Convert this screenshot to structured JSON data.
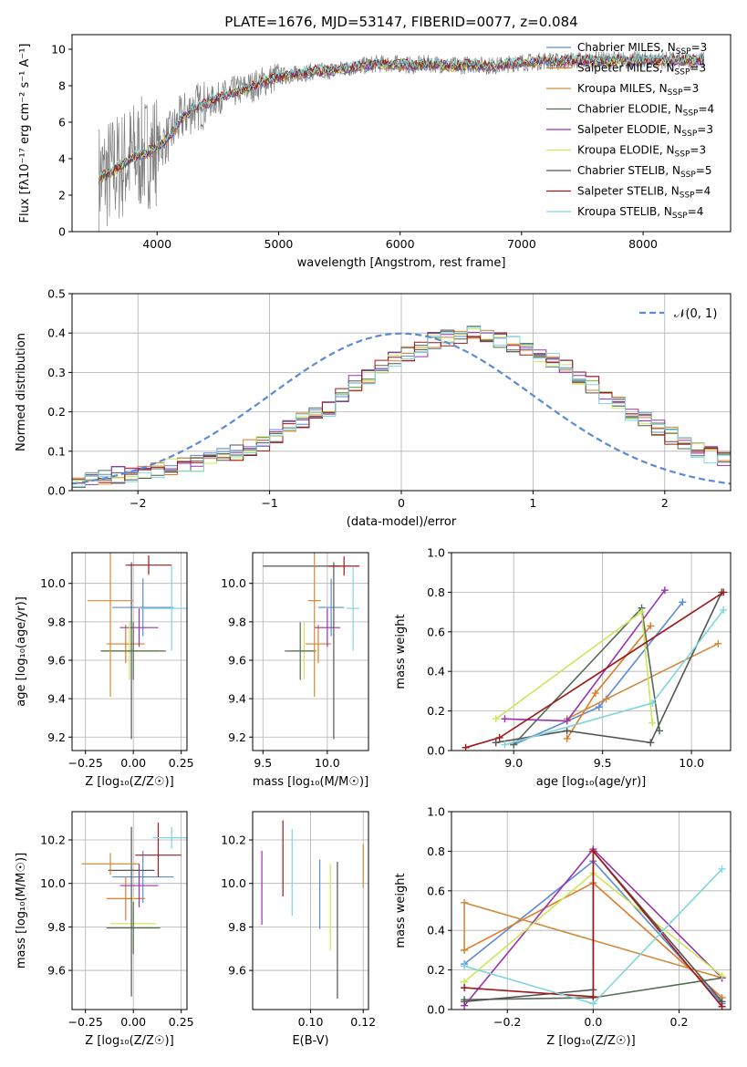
{
  "figure": {
    "title": "PLATE=1676, MJD=53147, FIBERID=0077, z=0.084"
  },
  "series_styles": [
    {
      "name": "Chabrier MILES, N_SSP=3",
      "color": "#5b8bd6"
    },
    {
      "name": "Salpeter MILES, N_SSP=3",
      "color": "#e07b2a"
    },
    {
      "name": "Kroupa MILES, N_SSP=3",
      "color": "#d08a3c"
    },
    {
      "name": "Chabrier ELODIE, N_SSP=4",
      "color": "#556b55"
    },
    {
      "name": "Salpeter ELODIE, N_SSP=3",
      "color": "#9b30b0"
    },
    {
      "name": "Kroupa ELODIE, N_SSP=3",
      "color": "#cde65a"
    },
    {
      "name": "Chabrier STELIB, N_SSP=5",
      "color": "#555555"
    },
    {
      "name": "Salpeter STELIB, N_SSP=4",
      "color": "#a01818"
    },
    {
      "name": "Kroupa STELIB, N_SSP=4",
      "color": "#7fd6dc"
    }
  ],
  "chart_data": [
    {
      "id": "spectrum",
      "type": "line",
      "title": "PLATE=1676, MJD=53147, FIBERID=0077, z=0.084",
      "xlabel": "wavelength [Angstrom, rest frame]",
      "ylabel": "Flux [fλ10⁻¹⁷ erg cm⁻² s⁻¹ A⁻¹]",
      "xlim": [
        3300,
        8720
      ],
      "ylim": [
        0,
        10.8
      ],
      "xticks": [
        4000,
        5000,
        6000,
        7000,
        8000
      ],
      "yticks": [
        0,
        2,
        4,
        6,
        8,
        10
      ],
      "grid": false,
      "legend_position": "upper right",
      "legend": [
        "Chabrier MILES, N_SSP=3",
        "Salpeter MILES, N_SSP=3",
        "Kroupa MILES, N_SSP=3",
        "Chabrier ELODIE, N_SSP=4",
        "Salpeter ELODIE, N_SSP=3",
        "Kroupa ELODIE, N_SSP=3",
        "Chabrier STELIB, N_SSP=5",
        "Salpeter STELIB, N_SSP=4",
        "Kroupa STELIB, N_SSP=4"
      ],
      "data_color": "#808080",
      "data_curve": {
        "x": [
          3520,
          3600,
          3700,
          3800,
          3900,
          4000,
          4100,
          4200,
          4300,
          4400,
          4500,
          4600,
          4700,
          4800,
          4900,
          5000,
          5100,
          5200,
          5300,
          5400,
          5500,
          5600,
          5700,
          5800,
          5900,
          6000,
          6100,
          6200,
          6300,
          6400,
          6500,
          6600,
          6700,
          6800,
          6900,
          7000,
          7100,
          7200,
          7300,
          7400
        ],
        "y": [
          2.9,
          3.2,
          3.6,
          4.1,
          4.3,
          4.6,
          5.2,
          6.2,
          6.8,
          7.0,
          7.3,
          7.6,
          7.8,
          8.0,
          8.3,
          8.5,
          8.6,
          8.7,
          8.8,
          8.8,
          8.9,
          9.0,
          9.1,
          9.2,
          9.2,
          9.2,
          9.1,
          9.2,
          9.2,
          9.1,
          9.1,
          9.2,
          9.1,
          9.1,
          9.2,
          9.3,
          9.3,
          9.4,
          9.3,
          9.4
        ]
      },
      "model_curve_x_extent": [
        3520,
        8500
      ]
    },
    {
      "id": "residual-hist",
      "type": "histogram",
      "xlabel": "(data-model)/error",
      "ylabel": "Normed distribution",
      "xlim": [
        -2.5,
        2.5
      ],
      "ylim": [
        0,
        0.5
      ],
      "xticks": [
        -2,
        -1,
        0,
        1,
        2
      ],
      "yticks": [
        0.0,
        0.1,
        0.2,
        0.3,
        0.4,
        0.5
      ],
      "grid": true,
      "legend": [
        "𝒩(0, 1)"
      ],
      "legend_position": "upper right",
      "reference_curve": {
        "name": "𝒩(0, 1)",
        "mean": 0,
        "sigma": 1,
        "color": "#5b8bd6"
      },
      "bin_width": 0.1,
      "bin_start": -2.5,
      "histogram": [
        0.025,
        0.03,
        0.035,
        0.04,
        0.045,
        0.05,
        0.055,
        0.06,
        0.065,
        0.07,
        0.08,
        0.09,
        0.095,
        0.11,
        0.12,
        0.14,
        0.16,
        0.18,
        0.195,
        0.21,
        0.24,
        0.27,
        0.29,
        0.31,
        0.33,
        0.35,
        0.36,
        0.38,
        0.39,
        0.39,
        0.395,
        0.39,
        0.38,
        0.37,
        0.36,
        0.35,
        0.33,
        0.31,
        0.29,
        0.27,
        0.24,
        0.22,
        0.2,
        0.18,
        0.16,
        0.14,
        0.12,
        0.1,
        0.09,
        0.08
      ]
    },
    {
      "id": "age-vs-Z",
      "type": "errorbar",
      "xlabel": "Z [log₁₀(Z/Z☉)]",
      "ylabel": "age  [log₁₀(age/yr)]",
      "xlim": [
        -0.32,
        0.28
      ],
      "ylim": [
        9.13,
        10.16
      ],
      "xticks": [
        -0.25,
        0.0,
        0.25
      ],
      "xtick_labels": [
        "−0.25",
        "0.00",
        "0.25"
      ],
      "yticks": [
        9.2,
        9.4,
        9.6,
        9.8,
        10.0
      ],
      "grid": true,
      "points": [
        {
          "series": 0,
          "x": 0.05,
          "y": 9.875,
          "xerr": [
            0.16,
            0.16
          ],
          "yerr": [
            0.15,
            0.15
          ]
        },
        {
          "series": 1,
          "x": -0.04,
          "y": 9.685,
          "xerr": [
            0.1,
            0.1
          ],
          "yerr": [
            0.1,
            0.1
          ]
        },
        {
          "series": 4,
          "x": 0.03,
          "y": 9.77,
          "xerr": [
            0.1,
            0.1
          ],
          "yerr": [
            0.1,
            0.1
          ]
        },
        {
          "series": 5,
          "x": -0.02,
          "y": 9.65,
          "xerr": [
            0.15,
            0.15
          ],
          "yerr": [
            0.15,
            0.15
          ]
        },
        {
          "series": 3,
          "x": 0.0,
          "y": 9.648,
          "xerr": [
            0.17,
            0.17
          ],
          "yerr": [
            0.15,
            0.15
          ]
        },
        {
          "series": 6,
          "x": -0.01,
          "y": 10.09,
          "xerr": [
            0.0,
            0.0
          ],
          "yerr": [
            0.9,
            0.02
          ]
        },
        {
          "series": 7,
          "x": 0.08,
          "y": 10.095,
          "xerr": [
            0.12,
            0.12
          ],
          "yerr": [
            0.05,
            0.05
          ]
        },
        {
          "series": 8,
          "x": 0.2,
          "y": 9.87,
          "xerr": [
            0.16,
            0.16
          ],
          "yerr": [
            0.22,
            0.22
          ]
        },
        {
          "series": 2,
          "x": -0.12,
          "y": 9.91,
          "xerr": [
            0.12,
            0.12
          ],
          "yerr": [
            0.5,
            0.5
          ]
        }
      ]
    },
    {
      "id": "age-vs-mass",
      "type": "errorbar",
      "xlabel": "mass [log₁₀(M/M☉)]",
      "ylabel": "",
      "xlim": [
        9.42,
        10.32
      ],
      "ylim": [
        9.13,
        10.16
      ],
      "xticks": [
        9.5,
        10.0
      ],
      "xtick_labels": [
        "9.5",
        "10.0"
      ],
      "yticks": [
        9.2,
        9.4,
        9.6,
        9.8,
        10.0
      ],
      "grid": true,
      "points": [
        {
          "series": 0,
          "x": 10.03,
          "y": 9.875,
          "xerr": [
            0.1,
            0.1
          ],
          "yerr": [
            0.15,
            0.15
          ]
        },
        {
          "series": 1,
          "x": 9.93,
          "y": 9.685,
          "xerr": [
            0.1,
            0.1
          ],
          "yerr": [
            0.1,
            0.1
          ]
        },
        {
          "series": 4,
          "x": 10.0,
          "y": 9.77,
          "xerr": [
            0.1,
            0.1
          ],
          "yerr": [
            0.1,
            0.1
          ]
        },
        {
          "series": 5,
          "x": 9.82,
          "y": 9.65,
          "xerr": [
            0.1,
            0.1
          ],
          "yerr": [
            0.15,
            0.15
          ]
        },
        {
          "series": 3,
          "x": 9.79,
          "y": 9.648,
          "xerr": [
            0.12,
            0.12
          ],
          "yerr": [
            0.15,
            0.15
          ]
        },
        {
          "series": 6,
          "x": 10.05,
          "y": 10.09,
          "xerr": [
            0.55,
            0.05
          ],
          "yerr": [
            0.9,
            0.02
          ]
        },
        {
          "series": 7,
          "x": 10.13,
          "y": 10.09,
          "xerr": [
            0.12,
            0.12
          ],
          "yerr": [
            0.05,
            0.05
          ]
        },
        {
          "series": 8,
          "x": 10.2,
          "y": 9.87,
          "xerr": [
            0.05,
            0.05
          ],
          "yerr": [
            0.22,
            0.22
          ]
        },
        {
          "series": 2,
          "x": 9.9,
          "y": 9.91,
          "xerr": [
            0.05,
            0.05
          ],
          "yerr": [
            0.5,
            0.5
          ]
        }
      ]
    },
    {
      "id": "weight-vs-age",
      "type": "line",
      "xlabel": "age  [log₁₀(age/yr)]",
      "ylabel": "mass weight",
      "xlim": [
        8.65,
        10.22
      ],
      "ylim": [
        0,
        1.0
      ],
      "xticks": [
        9.0,
        9.5,
        10.0
      ],
      "xtick_labels": [
        "9.0",
        "9.5",
        "10.0"
      ],
      "yticks": [
        0.0,
        0.2,
        0.4,
        0.6,
        0.8,
        1.0
      ],
      "grid": true,
      "series": [
        {
          "series": 0,
          "x": [
            9.0,
            9.48,
            9.95
          ],
          "y": [
            0.03,
            0.22,
            0.75
          ]
        },
        {
          "series": 1,
          "x": [
            9.3,
            9.46,
            9.77
          ],
          "y": [
            0.06,
            0.29,
            0.63
          ]
        },
        {
          "series": 2,
          "x": [
            9.3,
            9.52,
            10.15
          ],
          "y": [
            0.16,
            0.26,
            0.54
          ]
        },
        {
          "series": 3,
          "x": [
            9.0,
            9.72,
            9.82
          ],
          "y": [
            0.03,
            0.72,
            0.1
          ]
        },
        {
          "series": 4,
          "x": [
            8.95,
            9.3,
            9.85
          ],
          "y": [
            0.16,
            0.15,
            0.81
          ]
        },
        {
          "series": 5,
          "x": [
            8.9,
            9.72,
            9.78
          ],
          "y": [
            0.16,
            0.7,
            0.14
          ]
        },
        {
          "series": 6,
          "x": [
            8.9,
            9.3,
            9.77,
            10.17
          ],
          "y": [
            0.04,
            0.1,
            0.04,
            0.8
          ]
        },
        {
          "series": 7,
          "x": [
            8.73,
            8.92,
            10.18
          ],
          "y": [
            0.015,
            0.065,
            0.8
          ]
        },
        {
          "series": 8,
          "x": [
            8.95,
            9.78,
            10.18
          ],
          "y": [
            0.03,
            0.24,
            0.71
          ]
        }
      ]
    },
    {
      "id": "mass-vs-Z",
      "type": "errorbar",
      "xlabel": "Z [log₁₀(Z/Z☉)]",
      "ylabel": "mass [log₁₀(M/M☉)]",
      "xlim": [
        -0.32,
        0.28
      ],
      "ylim": [
        9.42,
        10.33
      ],
      "xticks": [
        -0.25,
        0.0,
        0.25
      ],
      "xtick_labels": [
        "−0.25",
        "0.00",
        "0.25"
      ],
      "yticks": [
        9.6,
        9.8,
        10.0,
        10.2
      ],
      "grid": true,
      "points": [
        {
          "series": 0,
          "x": 0.05,
          "y": 10.03,
          "xerr": [
            0.16,
            0.16
          ],
          "yerr": [
            0.12,
            0.12
          ]
        },
        {
          "series": 1,
          "x": -0.04,
          "y": 9.93,
          "xerr": [
            0.1,
            0.1
          ],
          "yerr": [
            0.1,
            0.1
          ]
        },
        {
          "series": 4,
          "x": 0.03,
          "y": 9.99,
          "xerr": [
            0.1,
            0.1
          ],
          "yerr": [
            0.1,
            0.1
          ]
        },
        {
          "series": 5,
          "x": 0.0,
          "y": 9.815,
          "xerr": [
            0.12,
            0.12
          ],
          "yerr": [
            0.12,
            0.12
          ]
        },
        {
          "series": 3,
          "x": 0.0,
          "y": 9.795,
          "xerr": [
            0.14,
            0.14
          ],
          "yerr": [
            0.12,
            0.12
          ]
        },
        {
          "series": 6,
          "x": -0.01,
          "y": 10.06,
          "xerr": [
            0.12,
            0.12
          ],
          "yerr": [
            0.58,
            0.2
          ]
        },
        {
          "series": 7,
          "x": 0.13,
          "y": 10.13,
          "xerr": [
            0.12,
            0.12
          ],
          "yerr": [
            0.1,
            0.15
          ]
        },
        {
          "series": 8,
          "x": 0.2,
          "y": 10.21,
          "xerr": [
            0.1,
            0.1
          ],
          "yerr": [
            0.05,
            0.05
          ]
        },
        {
          "series": 2,
          "x": -0.12,
          "y": 10.09,
          "xerr": [
            0.15,
            0.15
          ],
          "yerr": [
            0.05,
            0.05
          ]
        }
      ]
    },
    {
      "id": "mass-vs-ebv",
      "type": "errorbar",
      "xlabel": "E(B-V)",
      "ylabel": "",
      "xlim": [
        0.078,
        0.122
      ],
      "ylim": [
        9.42,
        10.33
      ],
      "xticks": [
        0.1,
        0.12
      ],
      "xtick_labels": [
        "0.10",
        "0.12"
      ],
      "yticks": [
        9.6,
        9.8,
        10.0,
        10.2
      ],
      "grid": true,
      "points": [
        {
          "series": 4,
          "x": 0.0815,
          "y": 9.98,
          "xerr": [
            0,
            0
          ],
          "yerr": [
            0.17,
            0.17
          ]
        },
        {
          "series": 7,
          "x": 0.0895,
          "y": 10.11,
          "xerr": [
            0,
            0
          ],
          "yerr": [
            0.17,
            0.18
          ]
        },
        {
          "series": 8,
          "x": 0.093,
          "y": 10.05,
          "xerr": [
            0,
            0
          ],
          "yerr": [
            0.2,
            0.2
          ]
        },
        {
          "series": 0,
          "x": 0.1035,
          "y": 9.95,
          "xerr": [
            0,
            0
          ],
          "yerr": [
            0.16,
            0.16
          ]
        },
        {
          "series": 5,
          "x": 0.1075,
          "y": 9.89,
          "xerr": [
            0,
            0
          ],
          "yerr": [
            0.2,
            0.2
          ]
        },
        {
          "series": 6,
          "x": 0.1102,
          "y": 9.79,
          "xerr": [
            0,
            0
          ],
          "yerr": [
            0.32,
            0.31
          ]
        },
        {
          "series": 2,
          "x": 0.12,
          "y": 10.08,
          "xerr": [
            0,
            0
          ],
          "yerr": [
            0.1,
            0.1
          ]
        }
      ]
    },
    {
      "id": "weight-vs-Z",
      "type": "line",
      "xlabel": "Z [log₁₀(Z/Z☉)]",
      "ylabel": "mass weight",
      "xlim": [
        -0.33,
        0.32
      ],
      "ylim": [
        0,
        1.0
      ],
      "xticks": [
        -0.2,
        0.0,
        0.2
      ],
      "xtick_labels": [
        "−0.2",
        "0.0",
        "0.2"
      ],
      "yticks": [
        0.0,
        0.2,
        0.4,
        0.6,
        0.8,
        1.0
      ],
      "grid": true,
      "series": [
        {
          "series": 0,
          "x": [
            -0.3,
            0.0,
            0.3
          ],
          "y": [
            0.23,
            0.75,
            0.03
          ]
        },
        {
          "series": 1,
          "x": [
            -0.3,
            0.0,
            0.3
          ],
          "y": [
            0.3,
            0.64,
            0.06
          ]
        },
        {
          "series": 2,
          "x": [
            -0.3,
            -0.3,
            0.3
          ],
          "y": [
            0.3,
            0.54,
            0.16
          ]
        },
        {
          "series": 3,
          "x": [
            -0.3,
            0.0,
            0.3
          ],
          "y": [
            0.05,
            0.06,
            0.16
          ]
        },
        {
          "series": 4,
          "x": [
            -0.3,
            0.0,
            0.3
          ],
          "y": [
            0.02,
            0.81,
            0.16
          ]
        },
        {
          "series": 5,
          "x": [
            -0.3,
            0.0,
            0.3
          ],
          "y": [
            0.14,
            0.69,
            0.17
          ]
        },
        {
          "series": 6,
          "x": [
            -0.3,
            0.0,
            0.0,
            0.3
          ],
          "y": [
            0.04,
            0.1,
            0.8,
            0.04
          ]
        },
        {
          "series": 7,
          "x": [
            -0.3,
            0.0,
            0.0,
            0.3
          ],
          "y": [
            0.11,
            0.065,
            0.8,
            0.015
          ]
        },
        {
          "series": 8,
          "x": [
            -0.3,
            0.0,
            0.3
          ],
          "y": [
            0.22,
            0.03,
            0.71
          ]
        }
      ]
    }
  ]
}
